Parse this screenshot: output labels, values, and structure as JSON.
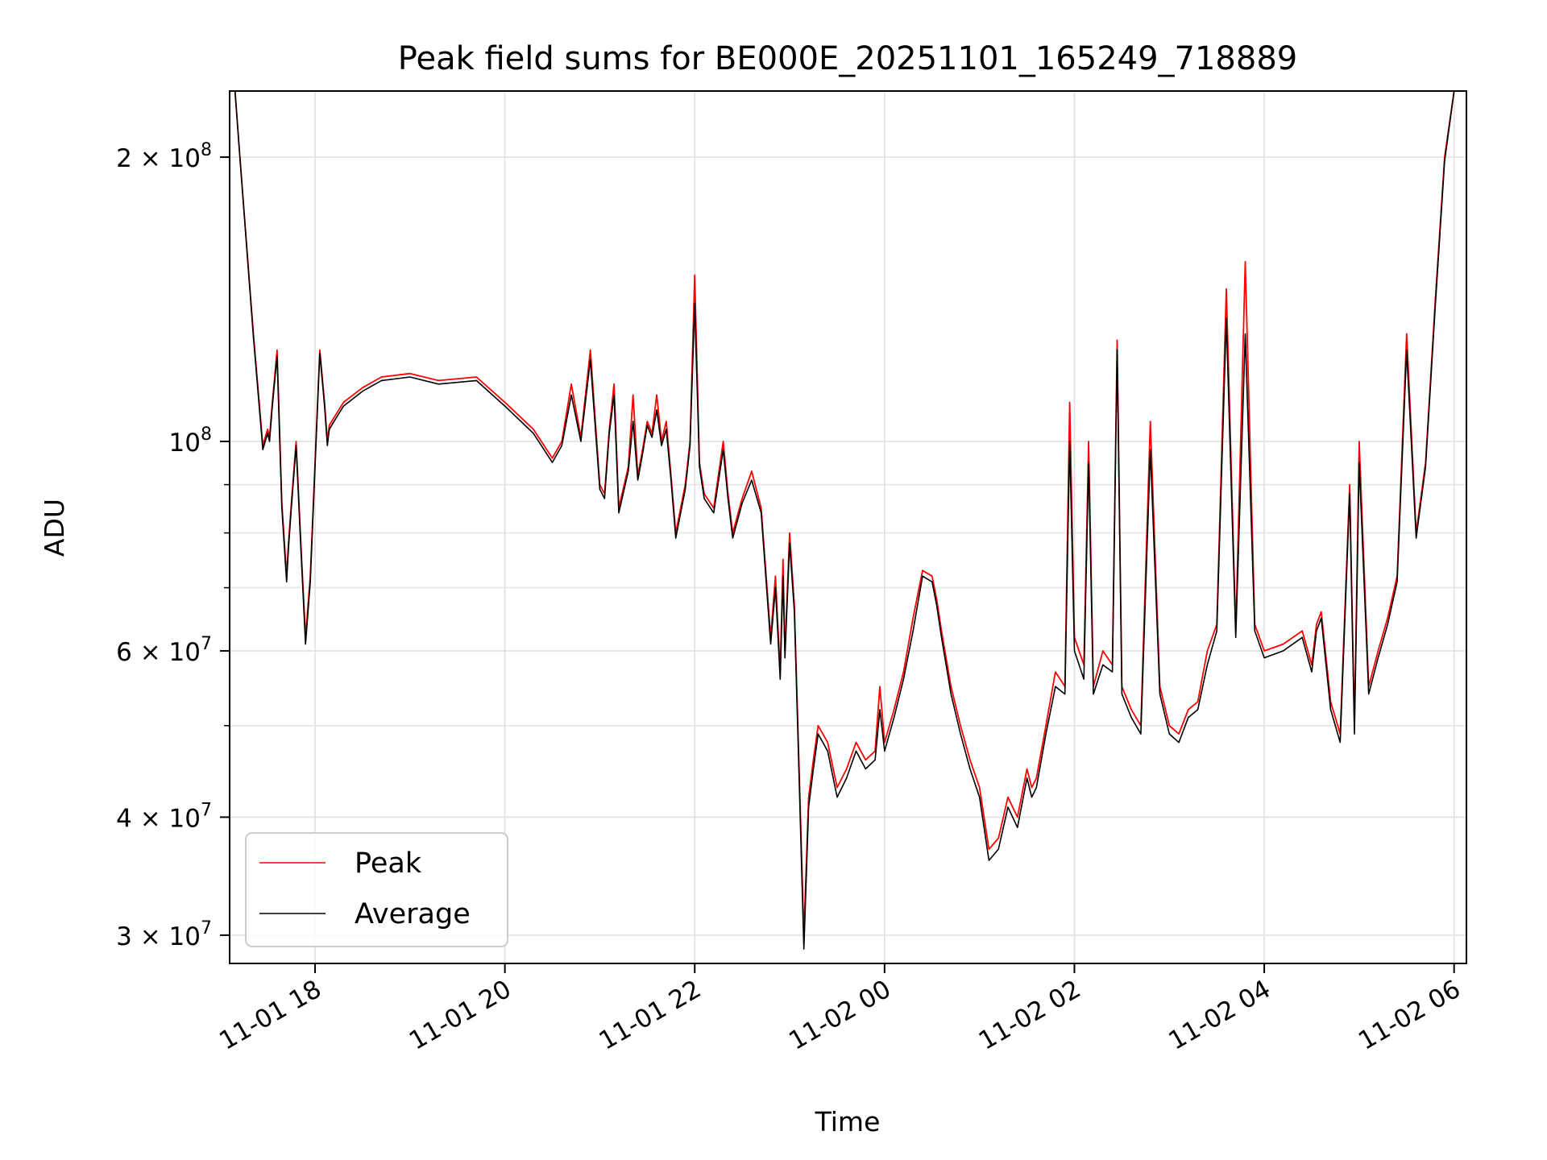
{
  "chart_data": {
    "type": "line",
    "title": "Peak field sums for BE000E_20251101_165249_718889",
    "xlabel": "Time",
    "ylabel": "ADU",
    "yscale": "log",
    "grid": true,
    "legend_position": "lower-left",
    "xlim_hours": [
      17.1,
      30.13
    ],
    "ylim": [
      28000000,
      235000000
    ],
    "x_ticks": [
      {
        "label": "11-01 18",
        "hour": 18
      },
      {
        "label": "11-01 20",
        "hour": 20
      },
      {
        "label": "11-01 22",
        "hour": 22
      },
      {
        "label": "11-02 00",
        "hour": 24
      },
      {
        "label": "11-02 02",
        "hour": 26
      },
      {
        "label": "11-02 04",
        "hour": 28
      },
      {
        "label": "11-02 06",
        "hour": 30
      }
    ],
    "y_ticks": [
      {
        "value": 30000000,
        "mant": "3",
        "exp": "7"
      },
      {
        "value": 40000000,
        "mant": "4",
        "exp": "7"
      },
      {
        "value": 60000000,
        "mant": "6",
        "exp": "7"
      },
      {
        "value": 100000000,
        "mant": "",
        "exp": "8"
      },
      {
        "value": 200000000,
        "mant": "2",
        "exp": "8"
      }
    ],
    "y_minor_ticks": [
      50000000,
      70000000,
      80000000,
      90000000
    ],
    "series": [
      {
        "name": "Peak",
        "color": "#ff0000",
        "x": [
          17.15,
          17.2,
          17.35,
          17.45,
          17.5,
          17.52,
          17.55,
          17.6,
          17.65,
          17.7,
          17.72,
          17.75,
          17.8,
          17.85,
          17.9,
          17.95,
          18.0,
          18.05,
          18.1,
          18.13,
          18.15,
          18.2,
          18.25,
          18.3,
          18.5,
          18.7,
          19.0,
          19.3,
          19.7,
          20.0,
          20.3,
          20.5,
          20.6,
          20.7,
          20.8,
          20.9,
          21.0,
          21.05,
          21.1,
          21.15,
          21.2,
          21.3,
          21.35,
          21.4,
          21.45,
          21.5,
          21.55,
          21.6,
          21.65,
          21.7,
          21.75,
          21.8,
          21.9,
          21.95,
          22.0,
          22.05,
          22.1,
          22.2,
          22.3,
          22.35,
          22.4,
          22.5,
          22.6,
          22.7,
          22.8,
          22.85,
          22.9,
          22.93,
          22.95,
          23.0,
          23.05,
          23.1,
          23.15,
          23.2,
          23.25,
          23.3,
          23.4,
          23.5,
          23.6,
          23.7,
          23.8,
          23.9,
          23.95,
          24.0,
          24.1,
          24.2,
          24.3,
          24.4,
          24.5,
          24.55,
          24.6,
          24.7,
          24.8,
          24.9,
          25.0,
          25.1,
          25.2,
          25.3,
          25.4,
          25.5,
          25.55,
          25.6,
          25.7,
          25.8,
          25.9,
          25.95,
          26.0,
          26.1,
          26.15,
          26.2,
          26.3,
          26.4,
          26.45,
          26.5,
          26.6,
          26.7,
          26.8,
          26.9,
          27.0,
          27.1,
          27.2,
          27.3,
          27.4,
          27.5,
          27.6,
          27.7,
          27.8,
          27.9,
          28.0,
          28.2,
          28.4,
          28.5,
          28.55,
          28.6,
          28.7,
          28.8,
          28.9,
          28.95,
          29.0,
          29.1,
          29.2,
          29.3,
          29.4,
          29.5,
          29.6,
          29.7,
          29.8,
          29.9,
          30.0
        ],
        "y": [
          240000000,
          205000000,
          130000000,
          99000000,
          103000000,
          101000000,
          110000000,
          125000000,
          86000000,
          72000000,
          78000000,
          86000000,
          100000000,
          78000000,
          62000000,
          72000000,
          95000000,
          125000000,
          110000000,
          100000000,
          104000000,
          106000000,
          108000000,
          110000000,
          114000000,
          117000000,
          118000000,
          116000000,
          117000000,
          110000000,
          103000000,
          96000000,
          100000000,
          115000000,
          101000000,
          125000000,
          90000000,
          88000000,
          103000000,
          115000000,
          85000000,
          94000000,
          112000000,
          92000000,
          98000000,
          105000000,
          102000000,
          112000000,
          100000000,
          105000000,
          92000000,
          80000000,
          90000000,
          100000000,
          150000000,
          95000000,
          88000000,
          85000000,
          100000000,
          88000000,
          80000000,
          87000000,
          93000000,
          85000000,
          62000000,
          72000000,
          57000000,
          75000000,
          60000000,
          80000000,
          67000000,
          45000000,
          30000000,
          42000000,
          46000000,
          50000000,
          48000000,
          43000000,
          45000000,
          48000000,
          46000000,
          47000000,
          55000000,
          48000000,
          52000000,
          57000000,
          65000000,
          73000000,
          72000000,
          68000000,
          63000000,
          55000000,
          50000000,
          46000000,
          43000000,
          37000000,
          38000000,
          42000000,
          40000000,
          45000000,
          43000000,
          44000000,
          50000000,
          57000000,
          55000000,
          110000000,
          62000000,
          58000000,
          100000000,
          55000000,
          60000000,
          58000000,
          128000000,
          55000000,
          52000000,
          50000000,
          105000000,
          55000000,
          50000000,
          49000000,
          52000000,
          53000000,
          60000000,
          64000000,
          145000000,
          63000000,
          155000000,
          64000000,
          60000000,
          61000000,
          63000000,
          58000000,
          64000000,
          66000000,
          53000000,
          49000000,
          90000000,
          50000000,
          100000000,
          55000000,
          60000000,
          65000000,
          72000000,
          130000000,
          80000000,
          95000000,
          140000000,
          200000000,
          235000000
        ]
      },
      {
        "name": "Average",
        "color": "#000000",
        "x": [
          17.15,
          17.2,
          17.35,
          17.45,
          17.5,
          17.52,
          17.55,
          17.6,
          17.65,
          17.7,
          17.72,
          17.75,
          17.8,
          17.85,
          17.9,
          17.95,
          18.0,
          18.05,
          18.1,
          18.13,
          18.15,
          18.2,
          18.25,
          18.3,
          18.5,
          18.7,
          19.0,
          19.3,
          19.7,
          20.0,
          20.3,
          20.5,
          20.6,
          20.7,
          20.8,
          20.9,
          21.0,
          21.05,
          21.1,
          21.15,
          21.2,
          21.3,
          21.35,
          21.4,
          21.45,
          21.5,
          21.55,
          21.6,
          21.65,
          21.7,
          21.75,
          21.8,
          21.9,
          21.95,
          22.0,
          22.05,
          22.1,
          22.2,
          22.3,
          22.35,
          22.4,
          22.5,
          22.6,
          22.7,
          22.8,
          22.85,
          22.9,
          22.93,
          22.95,
          23.0,
          23.05,
          23.1,
          23.15,
          23.2,
          23.25,
          23.3,
          23.4,
          23.5,
          23.6,
          23.7,
          23.8,
          23.9,
          23.95,
          24.0,
          24.1,
          24.2,
          24.3,
          24.4,
          24.5,
          24.55,
          24.6,
          24.7,
          24.8,
          24.9,
          25.0,
          25.1,
          25.2,
          25.3,
          25.4,
          25.5,
          25.55,
          25.6,
          25.7,
          25.8,
          25.9,
          25.95,
          26.0,
          26.1,
          26.15,
          26.2,
          26.3,
          26.4,
          26.45,
          26.5,
          26.6,
          26.7,
          26.8,
          26.9,
          27.0,
          27.1,
          27.2,
          27.3,
          27.4,
          27.5,
          27.6,
          27.7,
          27.8,
          27.9,
          28.0,
          28.2,
          28.4,
          28.5,
          28.55,
          28.6,
          28.7,
          28.8,
          28.9,
          28.95,
          29.0,
          29.1,
          29.2,
          29.3,
          29.4,
          29.5,
          29.6,
          29.7,
          29.8,
          29.9,
          30.0
        ],
        "y": [
          240000000,
          205000000,
          129000000,
          98000000,
          102000000,
          100000000,
          109000000,
          123000000,
          85000000,
          71000000,
          77000000,
          85000000,
          99000000,
          77000000,
          61000000,
          71000000,
          94000000,
          124000000,
          109000000,
          99000000,
          103000000,
          105000000,
          107000000,
          109000000,
          113000000,
          116000000,
          117000000,
          115000000,
          116000000,
          109000000,
          102000000,
          95000000,
          99000000,
          112000000,
          100000000,
          122000000,
          89000000,
          87000000,
          102000000,
          112000000,
          84000000,
          93000000,
          105000000,
          91000000,
          97000000,
          104000000,
          101000000,
          108000000,
          99000000,
          103000000,
          91000000,
          79000000,
          89000000,
          99000000,
          140000000,
          94000000,
          87000000,
          84000000,
          98000000,
          87000000,
          79000000,
          86000000,
          91000000,
          84000000,
          61000000,
          70000000,
          56000000,
          72000000,
          59000000,
          78000000,
          66000000,
          44000000,
          29000000,
          41000000,
          45000000,
          49000000,
          47000000,
          42000000,
          44000000,
          47000000,
          45000000,
          46000000,
          52000000,
          47000000,
          51000000,
          56000000,
          63000000,
          72000000,
          71000000,
          67000000,
          62000000,
          54000000,
          49000000,
          45000000,
          42000000,
          36000000,
          37000000,
          41000000,
          39000000,
          44000000,
          42000000,
          43000000,
          49000000,
          55000000,
          54000000,
          100000000,
          60000000,
          56000000,
          95000000,
          54000000,
          58000000,
          57000000,
          125000000,
          54000000,
          51000000,
          49000000,
          98000000,
          54000000,
          49000000,
          48000000,
          51000000,
          52000000,
          58000000,
          63000000,
          135000000,
          62000000,
          130000000,
          63000000,
          59000000,
          60000000,
          62000000,
          57000000,
          63000000,
          65000000,
          52000000,
          48000000,
          88000000,
          49000000,
          95000000,
          54000000,
          59000000,
          64000000,
          71000000,
          125000000,
          79000000,
          94000000,
          138000000,
          198000000,
          235000000
        ]
      }
    ]
  }
}
